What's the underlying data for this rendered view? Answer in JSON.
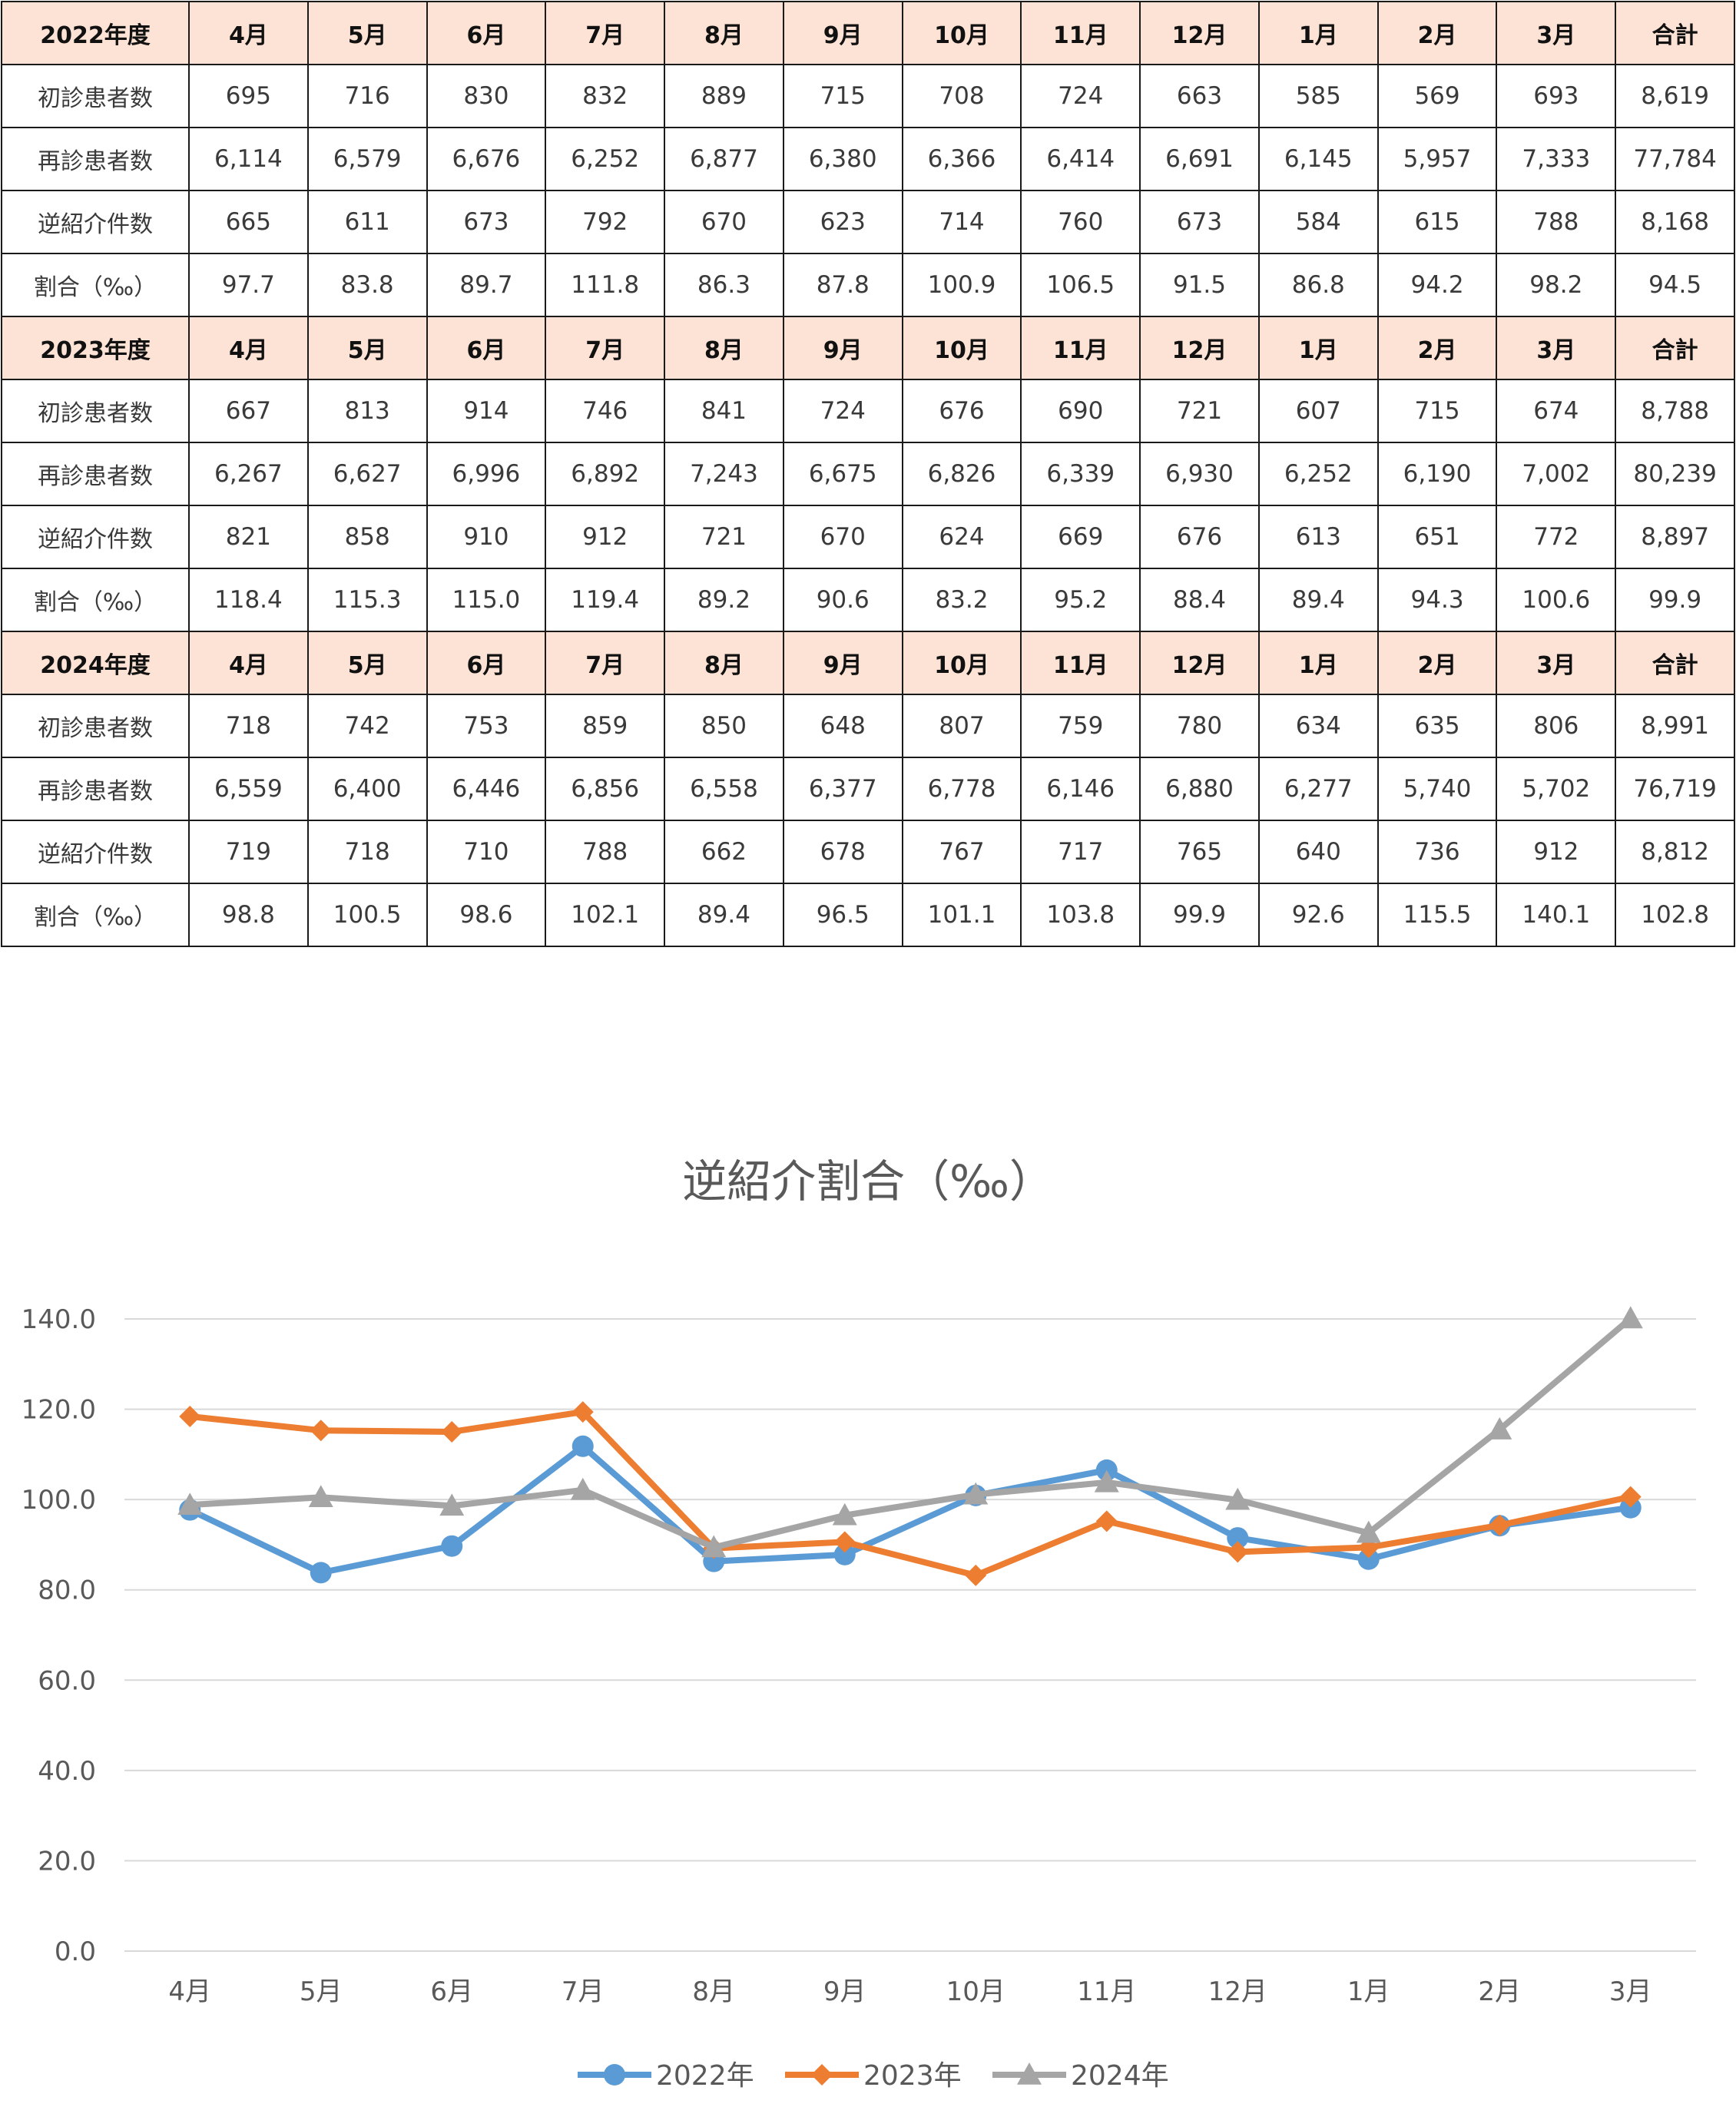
{
  "table": {
    "blocks": [
      {
        "header": [
          "2022年度",
          "4月",
          "5月",
          "6月",
          "7月",
          "8月",
          "9月",
          "10月",
          "11月",
          "12月",
          "1月",
          "2月",
          "3月",
          "合計"
        ],
        "rows": [
          [
            "初診患者数",
            "695",
            "716",
            "830",
            "832",
            "889",
            "715",
            "708",
            "724",
            "663",
            "585",
            "569",
            "693",
            "8,619"
          ],
          [
            "再診患者数",
            "6,114",
            "6,579",
            "6,676",
            "6,252",
            "6,877",
            "6,380",
            "6,366",
            "6,414",
            "6,691",
            "6,145",
            "5,957",
            "7,333",
            "77,784"
          ],
          [
            "逆紹介件数",
            "665",
            "611",
            "673",
            "792",
            "670",
            "623",
            "714",
            "760",
            "673",
            "584",
            "615",
            "788",
            "8,168"
          ],
          [
            "割合（‰）",
            "97.7",
            "83.8",
            "89.7",
            "111.8",
            "86.3",
            "87.8",
            "100.9",
            "106.5",
            "91.5",
            "86.8",
            "94.2",
            "98.2",
            "94.5"
          ]
        ]
      },
      {
        "header": [
          "2023年度",
          "4月",
          "5月",
          "6月",
          "7月",
          "8月",
          "9月",
          "10月",
          "11月",
          "12月",
          "1月",
          "2月",
          "3月",
          "合計"
        ],
        "rows": [
          [
            "初診患者数",
            "667",
            "813",
            "914",
            "746",
            "841",
            "724",
            "676",
            "690",
            "721",
            "607",
            "715",
            "674",
            "8,788"
          ],
          [
            "再診患者数",
            "6,267",
            "6,627",
            "6,996",
            "6,892",
            "7,243",
            "6,675",
            "6,826",
            "6,339",
            "6,930",
            "6,252",
            "6,190",
            "7,002",
            "80,239"
          ],
          [
            "逆紹介件数",
            "821",
            "858",
            "910",
            "912",
            "721",
            "670",
            "624",
            "669",
            "676",
            "613",
            "651",
            "772",
            "8,897"
          ],
          [
            "割合（‰）",
            "118.4",
            "115.3",
            "115.0",
            "119.4",
            "89.2",
            "90.6",
            "83.2",
            "95.2",
            "88.4",
            "89.4",
            "94.3",
            "100.6",
            "99.9"
          ]
        ]
      },
      {
        "header": [
          "2024年度",
          "4月",
          "5月",
          "6月",
          "7月",
          "8月",
          "9月",
          "10月",
          "11月",
          "12月",
          "1月",
          "2月",
          "3月",
          "合計"
        ],
        "rows": [
          [
            "初診患者数",
            "718",
            "742",
            "753",
            "859",
            "850",
            "648",
            "807",
            "759",
            "780",
            "634",
            "635",
            "806",
            "8,991"
          ],
          [
            "再診患者数",
            "6,559",
            "6,400",
            "6,446",
            "6,856",
            "6,558",
            "6,377",
            "6,778",
            "6,146",
            "6,880",
            "6,277",
            "5,740",
            "5,702",
            "76,719"
          ],
          [
            "逆紹介件数",
            "719",
            "718",
            "710",
            "788",
            "662",
            "678",
            "767",
            "717",
            "765",
            "640",
            "736",
            "912",
            "8,812"
          ],
          [
            "割合（‰）",
            "98.8",
            "100.5",
            "98.6",
            "102.1",
            "89.4",
            "96.5",
            "101.1",
            "103.8",
            "99.9",
            "92.6",
            "115.5",
            "140.1",
            "102.8"
          ]
        ]
      }
    ]
  },
  "chart_data": {
    "type": "line",
    "title": "逆紹介割合（‰）",
    "categories": [
      "4月",
      "5月",
      "6月",
      "7月",
      "8月",
      "9月",
      "10月",
      "11月",
      "12月",
      "1月",
      "2月",
      "3月"
    ],
    "ylim": [
      0,
      140
    ],
    "yticks": [
      "0.0",
      "20.0",
      "40.0",
      "60.0",
      "80.0",
      "100.0",
      "120.0",
      "140.0"
    ],
    "series": [
      {
        "name": "2022年",
        "color": "#5b9bd5",
        "marker": "circle",
        "values": [
          97.7,
          83.8,
          89.7,
          111.8,
          86.3,
          87.8,
          100.9,
          106.5,
          91.5,
          86.8,
          94.2,
          98.2
        ]
      },
      {
        "name": "2023年",
        "color": "#ed7d31",
        "marker": "diamond",
        "values": [
          118.4,
          115.3,
          115.0,
          119.4,
          89.2,
          90.6,
          83.2,
          95.2,
          88.4,
          89.4,
          94.3,
          100.6
        ]
      },
      {
        "name": "2024年",
        "color": "#a5a5a5",
        "marker": "triangle",
        "values": [
          98.8,
          100.5,
          98.6,
          102.1,
          89.4,
          96.5,
          101.1,
          103.8,
          99.9,
          92.6,
          115.5,
          140.1
        ]
      }
    ],
    "legend": "bottom",
    "grid": true
  }
}
